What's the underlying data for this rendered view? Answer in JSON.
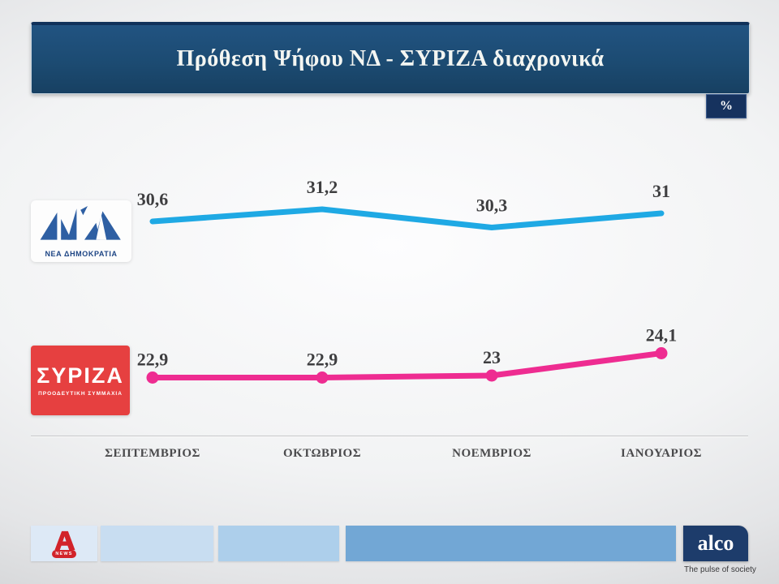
{
  "header": {
    "title": "Πρόθεση Ψήφου ΝΔ  - ΣΥΡΙΖΑ διαχρονικά"
  },
  "unit_badge": "%",
  "chart_data": {
    "type": "line",
    "title": "Πρόθεση Ψήφου ΝΔ - ΣΥΡΙΖΑ διαχρονικά",
    "unit": "%",
    "categories": [
      "ΣΕΠΤΕΜΒΡΙΟΣ",
      "ΟΚΤΩΒΡΙΟΣ",
      "ΝΟΕΜΒΡΙΟΣ",
      "ΙΑΝΟΥΑΡΙΟΣ"
    ],
    "series": [
      {
        "name": "ΝΔ",
        "color": "#1fa9e4",
        "values": [
          30.6,
          31.2,
          30.3,
          31
        ],
        "labels": [
          "30,6",
          "31,2",
          "30,3",
          "31"
        ],
        "markers": false
      },
      {
        "name": "ΣΥΡΙΖΑ",
        "color": "#ee2c91",
        "values": [
          22.9,
          22.9,
          23,
          24.1
        ],
        "labels": [
          "22,9",
          "22,9",
          "23",
          "24,1"
        ],
        "markers": true
      }
    ],
    "grid": false,
    "legend_position": "left-logos",
    "ylim": [
      20,
      33
    ]
  },
  "nd_logo": {
    "caption": "ΝΕΑ ΔΗΜΟΚΡΑΤΙΑ"
  },
  "syriza_logo": {
    "title": "ΣΥΡΙΖΑ",
    "subtitle": "ΠΡΟΟΔΕΥΤΙΚΗ ΣΥΜΜΑΧΙΑ"
  },
  "footer": {
    "alpha_news": {
      "badge": "NEWS"
    },
    "alco": {
      "name": "alco",
      "tagline": "The pulse of society"
    }
  },
  "colors": {
    "header_bg": "#1c4b72",
    "badge_bg": "#16325e",
    "nd_line": "#1fa9e4",
    "syriza_line": "#ee2c91",
    "nd_logo_blue": "#2e5fa3",
    "syriza_red": "#e64040",
    "alpha_red": "#d2232a",
    "alco_navy": "#1d3c6b"
  }
}
